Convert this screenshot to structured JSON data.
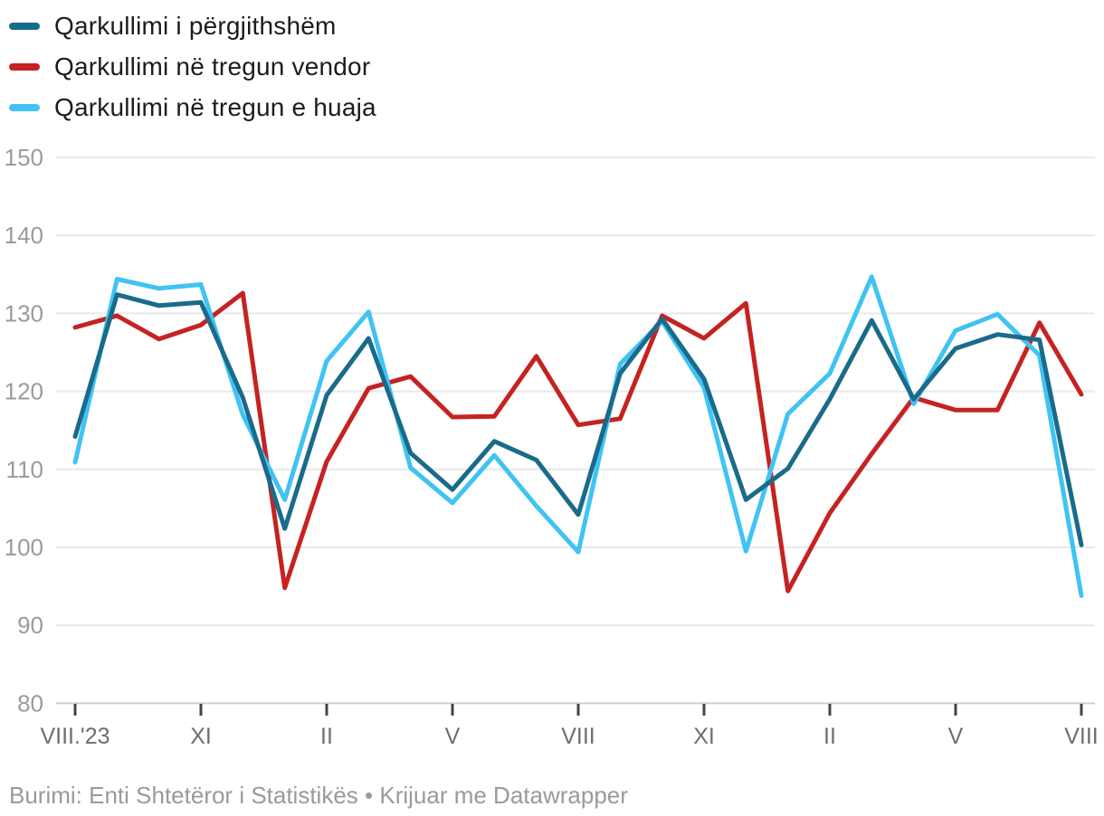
{
  "legend": {
    "items": [
      {
        "label": "Qarkullimi i përgjithshëm",
        "color": "#1a6b8a"
      },
      {
        "label": "Qarkullimi në tregun vendor",
        "color": "#c42322"
      },
      {
        "label": "Qarkullimi në tregun e huaja",
        "color": "#40c3f3"
      }
    ]
  },
  "source_line": "Burimi: Enti Shtetëror i Statistikës • Krijuar me Datawrapper",
  "chart_data": {
    "type": "line",
    "x_count": 25,
    "x_description": "monthly points from VIII.2023 to VIII.2025",
    "x_tick_labels": [
      "VIII.'23",
      "XI",
      "II",
      "V",
      "VIII",
      "XI",
      "II",
      "V",
      "VIII"
    ],
    "x_tick_indices": [
      0,
      3,
      6,
      9,
      12,
      15,
      18,
      21,
      24
    ],
    "ylim": [
      80,
      150
    ],
    "y_tick_step": 10,
    "grid": true,
    "legend_position": "top-left",
    "series": [
      {
        "name": "Qarkullimi i përgjithshëm",
        "color": "#1a6b8a",
        "values": [
          114.2,
          132.4,
          131.0,
          131.4,
          119.2,
          102.4,
          119.5,
          126.8,
          112.1,
          107.4,
          113.6,
          111.2,
          104.2,
          122.3,
          129.3,
          121.6,
          106.1,
          110.1,
          119.0,
          129.1,
          119.0,
          125.5,
          127.3,
          126.6,
          100.3
        ]
      },
      {
        "name": "Qarkullimi në tregun vendor",
        "color": "#c42322",
        "values": [
          128.2,
          129.7,
          126.7,
          128.5,
          132.6,
          94.8,
          111.0,
          120.4,
          121.9,
          116.7,
          116.8,
          124.5,
          115.7,
          116.5,
          129.7,
          126.8,
          131.3,
          94.4,
          104.4,
          112.0,
          119.2,
          117.6,
          117.6,
          128.8,
          119.6
        ]
      },
      {
        "name": "Qarkullimi në tregun e huaja",
        "color": "#40c3f3",
        "values": [
          110.9,
          134.4,
          133.2,
          133.7,
          117.0,
          106.1,
          123.9,
          130.2,
          110.2,
          105.7,
          111.8,
          105.3,
          99.4,
          123.5,
          129.0,
          120.5,
          99.5,
          117.1,
          122.3,
          134.7,
          118.4,
          127.8,
          129.9,
          124.6,
          93.8
        ]
      }
    ],
    "draw_order": [
      1,
      2,
      0
    ],
    "colors": {
      "gridline": "#e9e9e9",
      "axis_line": "#cfcfcf",
      "tick_mark": "#444444",
      "y_label": "#9b9b9b",
      "x_label": "#6e6e6e"
    }
  }
}
